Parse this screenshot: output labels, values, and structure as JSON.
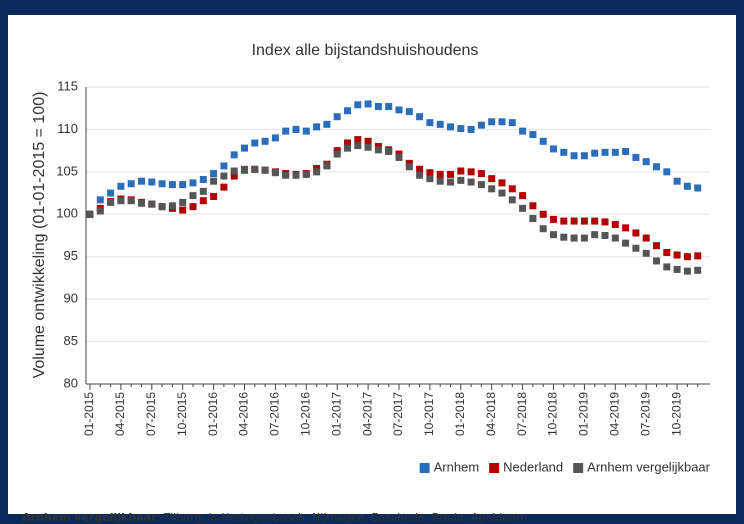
{
  "chart_data": {
    "type": "scatter",
    "title": "Index alle bijstandshuishoudens",
    "y_label": "Volume ontwikkeling (01-01-2015 = 100)",
    "categories": [
      "01-2015",
      null,
      null,
      "04-2015",
      null,
      null,
      "07-2015",
      null,
      null,
      "10-2015",
      null,
      null,
      "01-2016",
      null,
      null,
      "04-2016",
      null,
      null,
      "07-2016",
      null,
      null,
      "10-2016",
      null,
      null,
      "01-2017",
      null,
      null,
      "04-2017",
      null,
      null,
      "07-2017",
      null,
      null,
      "10-2017",
      null,
      null,
      "01-2018",
      null,
      null,
      "04-2018",
      null,
      null,
      "07-2018",
      null,
      null,
      "10-2018",
      null,
      null,
      "01-2019",
      null,
      null,
      "04-2019",
      null,
      null,
      "07-2019",
      null,
      null,
      "10-2019",
      null,
      null
    ],
    "series": [
      {
        "name": "Arnhem",
        "color": "#2a6ebb",
        "values": [
          100.0,
          101.7,
          102.5,
          103.3,
          103.6,
          103.9,
          103.8,
          103.6,
          103.5,
          103.5,
          103.7,
          104.1,
          104.8,
          105.7,
          107.0,
          107.8,
          108.4,
          108.6,
          109.0,
          109.8,
          110.0,
          109.8,
          110.3,
          110.6,
          111.5,
          112.2,
          112.9,
          113.0,
          112.7,
          112.7,
          112.3,
          112.1,
          111.5,
          110.8,
          110.6,
          110.3,
          110.1,
          110.0,
          110.5,
          110.9,
          110.9,
          110.8,
          109.8,
          109.4,
          108.6,
          107.7,
          107.3,
          106.9,
          106.9,
          107.2,
          107.3,
          107.3,
          107.4,
          106.7,
          106.2,
          105.6,
          105.0,
          103.9,
          103.3,
          103.1
        ]
      },
      {
        "name": "Nederland",
        "color": "#b00000",
        "values": [
          100.0,
          100.7,
          101.5,
          101.8,
          101.7,
          101.4,
          101.2,
          100.9,
          100.7,
          100.5,
          100.9,
          101.6,
          102.1,
          103.2,
          104.5,
          105.2,
          105.3,
          105.2,
          105.0,
          104.8,
          104.7,
          104.8,
          105.4,
          105.9,
          107.5,
          108.4,
          108.8,
          108.6,
          108.0,
          107.6,
          107.1,
          106.0,
          105.3,
          104.9,
          104.7,
          104.7,
          105.1,
          105.0,
          104.8,
          104.2,
          103.7,
          103.0,
          102.2,
          101.0,
          100.0,
          99.4,
          99.2,
          99.2,
          99.2,
          99.2,
          99.1,
          98.8,
          98.4,
          97.8,
          97.2,
          96.3,
          95.5,
          95.2,
          95.0,
          95.1
        ]
      },
      {
        "name": "Arnhem vergelijkbaar",
        "color": "#555555",
        "values": [
          100.0,
          100.4,
          101.4,
          101.6,
          101.6,
          101.3,
          101.2,
          100.9,
          101.0,
          101.4,
          102.2,
          102.7,
          103.9,
          104.5,
          105.1,
          105.3,
          105.3,
          105.2,
          104.9,
          104.6,
          104.6,
          104.7,
          105.0,
          105.7,
          107.1,
          107.8,
          108.1,
          107.9,
          107.6,
          107.4,
          106.7,
          105.6,
          104.6,
          104.2,
          103.9,
          103.8,
          104.0,
          103.8,
          103.5,
          103.0,
          102.5,
          101.7,
          100.7,
          99.5,
          98.3,
          97.6,
          97.3,
          97.2,
          97.2,
          97.6,
          97.5,
          97.2,
          96.6,
          96.0,
          95.4,
          94.5,
          93.8,
          93.5,
          93.3,
          93.4
        ]
      }
    ],
    "ylim": [
      80,
      115
    ],
    "yticks": [
      80,
      85,
      90,
      95,
      100,
      105,
      110,
      115
    ],
    "grid": true,
    "legend": "bottom-right"
  },
  "footnote": {
    "term": "Arnhem vergelijkbaar",
    "text": ": Tilburg, 's-Hertogenbosch, Nijmegen, Enschede, Breda, Apeldoorn"
  }
}
